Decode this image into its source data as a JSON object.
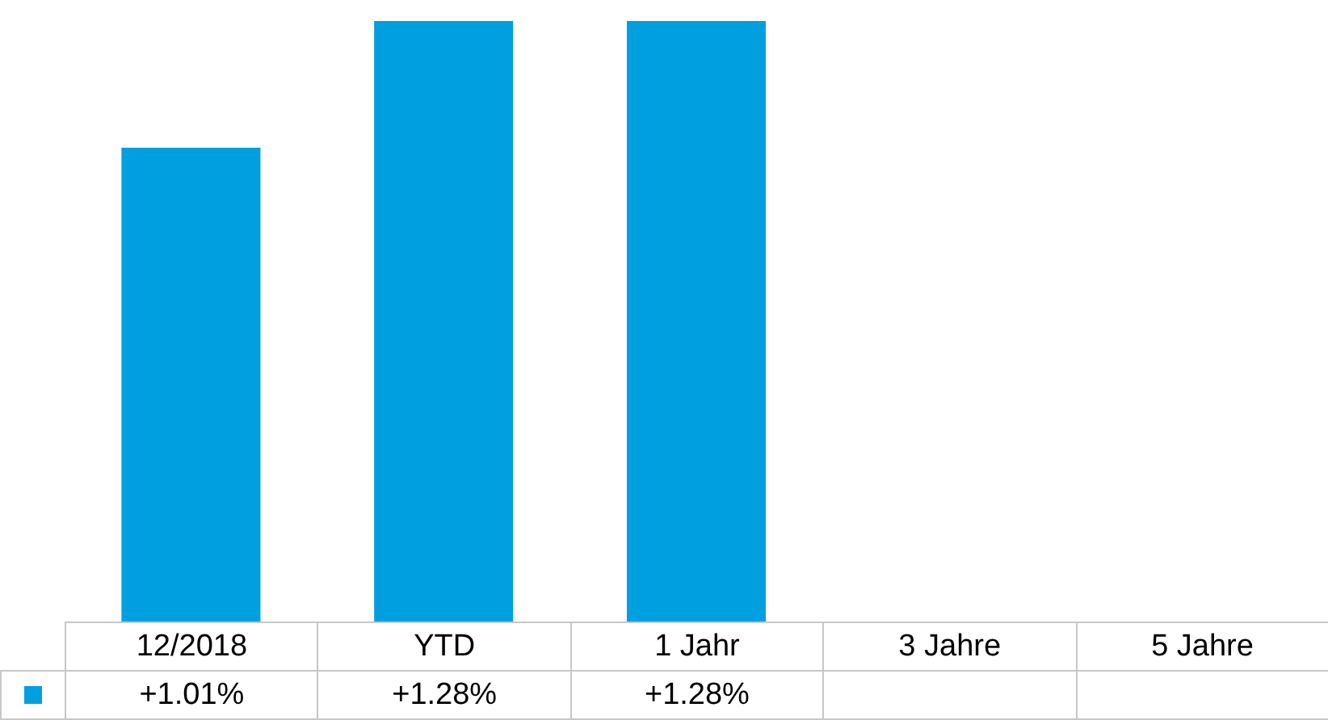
{
  "chart_data": {
    "type": "bar",
    "categories": [
      "12/2018",
      "YTD",
      "1 Jahr",
      "3 Jahre",
      "5 Jahre"
    ],
    "values": [
      1.01,
      1.28,
      1.28,
      null,
      null
    ],
    "color": "#009fe0",
    "value_labels": [
      "+1.01%",
      "+1.28%",
      "+1.28%",
      null,
      null
    ]
  }
}
